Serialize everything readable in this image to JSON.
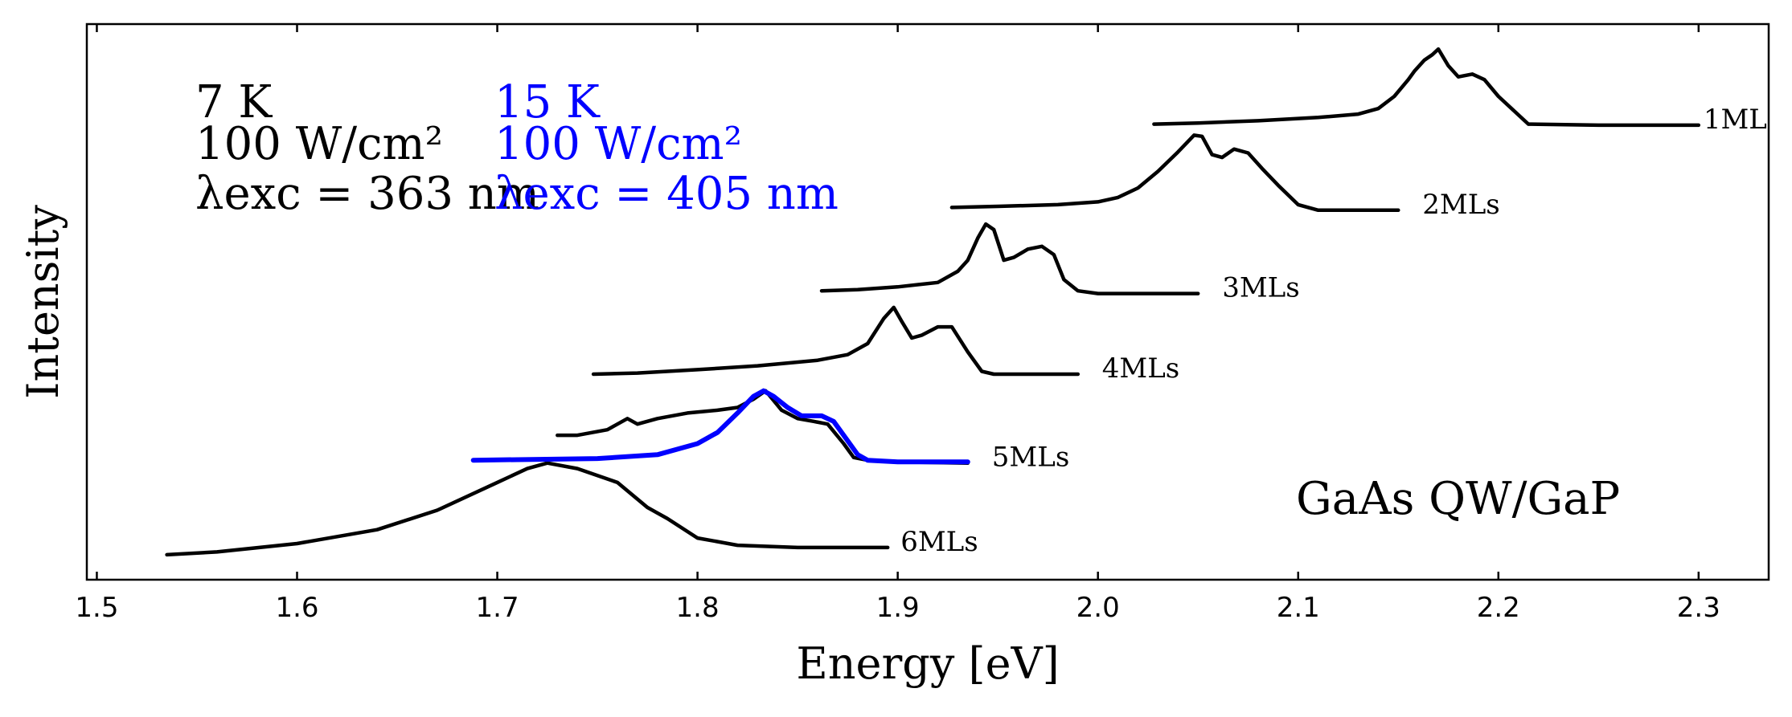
{
  "chart_data": {
    "type": "line",
    "xlabel": "Energy [eV]",
    "ylabel": "Intensity",
    "xlim": [
      1.495,
      2.335
    ],
    "ylim": [
      0,
      1
    ],
    "x_ticks": [
      "1.5",
      "1.6",
      "1.7",
      "1.8",
      "1.9",
      "2.0",
      "2.1",
      "2.2",
      "2.3"
    ],
    "y_ticks_labeled": false,
    "grid": false,
    "sample_label": "GaAs QW/GaP",
    "conditions": {
      "black": {
        "temperature": "7 K",
        "power": "100 W/cm²",
        "excitation": "λexc = 363 nm",
        "color": "#000000"
      },
      "blue": {
        "temperature": "15 K",
        "power": "100 W/cm²",
        "excitation": "λexc = 405 nm",
        "color": "#0000ff"
      }
    },
    "series": [
      {
        "name": "1ML",
        "color": "#000000",
        "x": [
          2.028,
          2.05,
          2.08,
          2.11,
          2.13,
          2.14,
          2.148,
          2.155,
          2.158,
          2.163,
          2.167,
          2.17,
          2.175,
          2.18,
          2.187,
          2.193,
          2.2,
          2.215,
          2.25,
          2.3
        ],
        "y": [
          0.82,
          0.822,
          0.826,
          0.832,
          0.838,
          0.848,
          0.87,
          0.9,
          0.915,
          0.935,
          0.945,
          0.955,
          0.925,
          0.905,
          0.91,
          0.9,
          0.87,
          0.82,
          0.818,
          0.818
        ]
      },
      {
        "name": "2MLs",
        "color": "#000000",
        "x": [
          1.927,
          1.95,
          1.98,
          2.0,
          2.01,
          2.02,
          2.03,
          2.04,
          2.048,
          2.052,
          2.057,
          2.062,
          2.068,
          2.075,
          2.082,
          2.09,
          2.1,
          2.11,
          2.15
        ],
        "y": [
          0.67,
          0.672,
          0.675,
          0.68,
          0.688,
          0.705,
          0.735,
          0.77,
          0.8,
          0.798,
          0.765,
          0.76,
          0.775,
          0.768,
          0.74,
          0.71,
          0.675,
          0.665,
          0.665
        ]
      },
      {
        "name": "3MLs",
        "color": "#000000",
        "x": [
          1.862,
          1.88,
          1.9,
          1.92,
          1.93,
          1.935,
          1.94,
          1.944,
          1.948,
          1.953,
          1.958,
          1.965,
          1.972,
          1.978,
          1.983,
          1.99,
          2.0,
          2.05
        ],
        "y": [
          0.52,
          0.522,
          0.527,
          0.535,
          0.555,
          0.575,
          0.615,
          0.64,
          0.63,
          0.575,
          0.58,
          0.595,
          0.6,
          0.585,
          0.54,
          0.52,
          0.515,
          0.515
        ]
      },
      {
        "name": "4MLs",
        "color": "#000000",
        "x": [
          1.748,
          1.77,
          1.8,
          1.83,
          1.86,
          1.875,
          1.885,
          1.893,
          1.898,
          1.902,
          1.907,
          1.912,
          1.92,
          1.927,
          1.935,
          1.942,
          1.948,
          1.99
        ],
        "y": [
          0.37,
          0.372,
          0.378,
          0.385,
          0.395,
          0.405,
          0.425,
          0.47,
          0.49,
          0.465,
          0.435,
          0.44,
          0.455,
          0.455,
          0.41,
          0.375,
          0.37,
          0.37
        ]
      },
      {
        "name": "5MLs",
        "color": "#000000",
        "x": [
          1.73,
          1.74,
          1.755,
          1.765,
          1.77,
          1.78,
          1.795,
          1.81,
          1.82,
          1.828,
          1.834,
          1.842,
          1.85,
          1.858,
          1.865,
          1.873,
          1.878,
          1.885,
          1.9,
          1.935
        ],
        "y": [
          0.26,
          0.26,
          0.27,
          0.29,
          0.28,
          0.29,
          0.3,
          0.305,
          0.31,
          0.325,
          0.34,
          0.305,
          0.29,
          0.285,
          0.28,
          0.245,
          0.22,
          0.215,
          0.212,
          0.21
        ]
      },
      {
        "name": "6MLs",
        "color": "#000000",
        "x": [
          1.535,
          1.56,
          1.6,
          1.64,
          1.67,
          1.7,
          1.715,
          1.725,
          1.74,
          1.76,
          1.775,
          1.785,
          1.8,
          1.82,
          1.85,
          1.895
        ],
        "y": [
          0.045,
          0.05,
          0.065,
          0.09,
          0.125,
          0.175,
          0.2,
          0.21,
          0.2,
          0.175,
          0.13,
          0.11,
          0.075,
          0.062,
          0.058,
          0.058
        ]
      },
      {
        "name": "",
        "color": "#0000ff",
        "x": [
          1.688,
          1.75,
          1.78,
          1.8,
          1.81,
          1.82,
          1.828,
          1.833,
          1.838,
          1.845,
          1.852,
          1.862,
          1.868,
          1.875,
          1.88,
          1.885,
          1.9,
          1.935
        ],
        "y": [
          0.215,
          0.218,
          0.225,
          0.245,
          0.265,
          0.3,
          0.33,
          0.34,
          0.33,
          0.31,
          0.295,
          0.295,
          0.285,
          0.25,
          0.225,
          0.215,
          0.212,
          0.212
        ]
      }
    ]
  }
}
